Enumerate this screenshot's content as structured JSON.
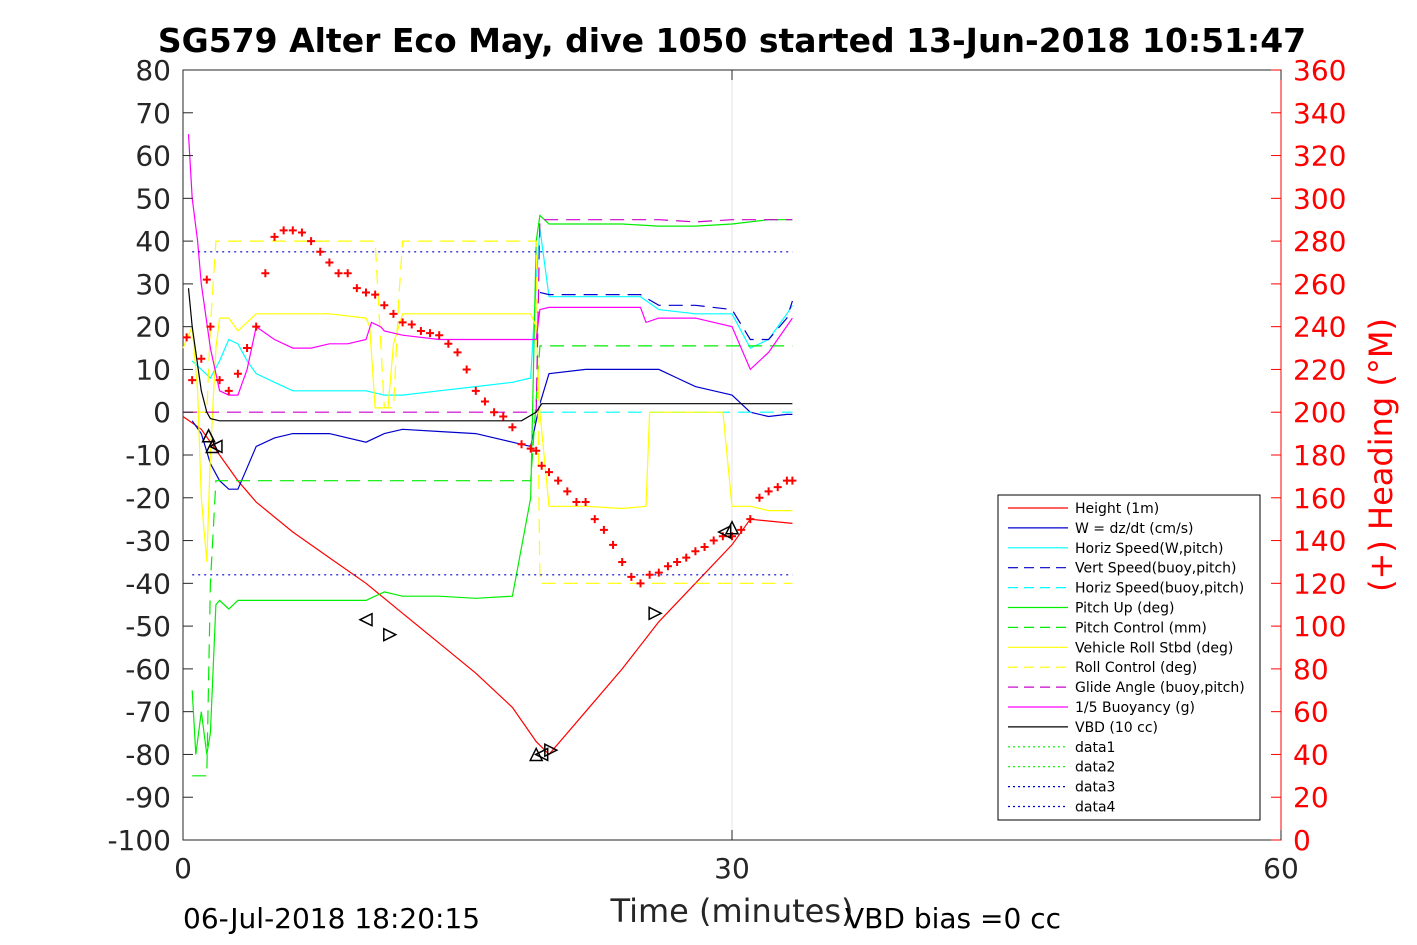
{
  "colors": {
    "axis": "#262626",
    "grid": "#e6e6e6",
    "right_axis": "#ff0000"
  },
  "chart_data": {
    "type": "line",
    "title": "SG579 Alter Eco May, dive 1050 started 13-Jun-2018 10:51:47",
    "xlabel": "Time (minutes)",
    "ylabel": "",
    "y2label": "(+) Heading (°M)",
    "xlim": [
      0,
      60
    ],
    "ylim": [
      -100,
      80
    ],
    "y2lim": [
      0,
      360
    ],
    "xticks": [
      0,
      30,
      60
    ],
    "yticks": [
      -100,
      -90,
      -80,
      -70,
      -60,
      -50,
      -40,
      -30,
      -20,
      -10,
      0,
      10,
      20,
      30,
      40,
      50,
      60,
      70,
      80
    ],
    "y2ticks": [
      0,
      20,
      40,
      60,
      80,
      100,
      120,
      140,
      160,
      180,
      200,
      220,
      240,
      260,
      280,
      300,
      320,
      340,
      360
    ],
    "grid": "x only at 30",
    "legend_position": "lower-right",
    "footer_left": "06-Jul-2018 18:20:15",
    "footer_right": "VBD bias =0 cc",
    "series": [
      {
        "name": "Height (1m)",
        "color": "#ff0000",
        "style": "solid",
        "x": [
          0,
          1,
          2,
          3,
          4,
          6,
          8,
          10,
          12,
          14,
          16,
          18,
          19.3,
          20,
          22,
          24,
          26,
          28,
          30,
          31,
          33.3
        ],
        "y": [
          -1,
          -4,
          -10,
          -16,
          -21,
          -28,
          -34,
          -40,
          -47,
          -54,
          -61,
          -69,
          -77,
          -80,
          -70,
          -60,
          -49,
          -40,
          -31,
          -25,
          -26
        ]
      },
      {
        "name": "W = dz/dt (cm/s)",
        "color": "#0000cc",
        "style": "solid",
        "x": [
          0.5,
          1,
          1.5,
          2,
          2.5,
          3,
          3.5,
          4,
          5,
          6,
          8,
          10,
          11,
          12,
          14,
          16,
          18,
          19,
          19.5,
          20,
          22,
          24,
          26,
          27,
          28,
          29,
          30,
          31,
          32,
          33,
          33.3
        ],
        "y": [
          -2,
          -5,
          -12,
          -16,
          -18,
          -18,
          -13,
          -8,
          -6,
          -5,
          -5,
          -7,
          -5,
          -4,
          -4.5,
          -5,
          -7,
          -8,
          2,
          9,
          10,
          10,
          10,
          8,
          6,
          5,
          4,
          0,
          -1,
          -0.5,
          -0.5
        ]
      },
      {
        "name": "Horiz Speed(W,pitch)",
        "color": "#00ffff",
        "style": "solid",
        "x": [
          0.5,
          1,
          1.5,
          2,
          2.5,
          3,
          3.5,
          4,
          5,
          6,
          8,
          10,
          11,
          12,
          14,
          16,
          18,
          19,
          19.3,
          19.5,
          20,
          22,
          24,
          25,
          26,
          28,
          30,
          31,
          32,
          33,
          33.3
        ],
        "y": [
          12,
          10,
          8,
          12,
          17,
          16,
          12,
          9,
          7,
          5,
          5,
          5,
          4,
          4,
          5,
          6,
          7,
          8,
          30,
          43,
          27,
          27,
          27,
          27,
          24,
          23,
          23,
          15,
          17,
          23,
          25
        ]
      },
      {
        "name": "Vert Speed(buoy,pitch)",
        "color": "#0000cc",
        "style": "dashed",
        "x": [
          19.5,
          20,
          22,
          24,
          25,
          26,
          28,
          30,
          31,
          32,
          33,
          33.3
        ],
        "y": [
          28,
          27.5,
          27.5,
          27.5,
          27.5,
          25,
          25,
          24,
          17,
          17,
          22,
          26
        ]
      },
      {
        "name": "Horiz Speed(buoy,pitch)",
        "color": "#00ffff",
        "style": "dashed",
        "x": [
          19.5,
          20,
          22,
          24,
          26,
          28,
          30,
          31,
          33.3
        ],
        "y": [
          0,
          0,
          0,
          0,
          0,
          0,
          0,
          0,
          0
        ]
      },
      {
        "name": "Pitch Up (deg)",
        "color": "#00ee00",
        "style": "solid",
        "x": [
          0.5,
          0.7,
          1,
          1.3,
          1.5,
          1.8,
          2,
          2.5,
          3,
          4,
          6,
          8,
          10,
          10.5,
          11,
          12,
          14,
          16,
          18,
          19,
          19.3,
          19.5,
          20,
          22,
          24,
          26,
          28,
          30,
          32,
          33.3
        ],
        "y": [
          -65,
          -80,
          -70,
          -80,
          -75,
          -45,
          -44,
          -46,
          -44,
          -44,
          -44,
          -44,
          -44,
          -43,
          -42,
          -43,
          -43,
          -43.5,
          -43,
          -20,
          40,
          46,
          44,
          44,
          44,
          43.5,
          43.5,
          44,
          45,
          45
        ]
      },
      {
        "name": "Pitch Control (mm)",
        "color": "#00ee00",
        "style": "dashed",
        "x": [
          0.5,
          1.3,
          1.5,
          1.8,
          2,
          6,
          10,
          14,
          18.5,
          19,
          19.5,
          20,
          24,
          28,
          33.3
        ],
        "y": [
          -85,
          -85,
          -40,
          -16,
          -16,
          -16,
          -16,
          -16,
          -16,
          -16,
          15.5,
          15.5,
          15.5,
          15.5,
          15.5
        ]
      },
      {
        "name": "Vehicle Roll Stbd (deg)",
        "color": "#ffff00",
        "style": "solid",
        "x": [
          0,
          0.5,
          0.8,
          1,
          1.3,
          1.5,
          1.8,
          2,
          2.5,
          3,
          4,
          6,
          8,
          10,
          10.2,
          10.5,
          11,
          11.2,
          11.5,
          12,
          14,
          16,
          18,
          19,
          19.3,
          19.5,
          20,
          22,
          24,
          25.3,
          25.5,
          27,
          29,
          29.5,
          30,
          31,
          32,
          33.3
        ],
        "y": [
          15,
          20,
          5,
          -20,
          -35,
          -10,
          15,
          22,
          22,
          19,
          23,
          23,
          23,
          22,
          20,
          1,
          1,
          1,
          16,
          23,
          23,
          23,
          23,
          23,
          20,
          0,
          -22,
          -22,
          -22.5,
          -22,
          0,
          0,
          0,
          0,
          -22,
          -22,
          -23,
          -23
        ]
      },
      {
        "name": "Roll Control (deg)",
        "color": "#ffff00",
        "style": "dashed",
        "x": [
          0.5,
          1,
          1.3,
          1.5,
          1.8,
          2,
          4,
          8,
          10,
          10.5,
          11,
          11.5,
          11.8,
          12,
          14,
          18,
          19,
          19.3,
          19.5,
          20,
          24,
          25.3,
          25.5,
          29,
          29.3,
          30,
          33.3
        ],
        "y": [
          0,
          0,
          0,
          20,
          40,
          40,
          40,
          40,
          40,
          40,
          1,
          1,
          27,
          40,
          40,
          40,
          40,
          40,
          -40,
          -40,
          -40,
          -40,
          -40,
          -40,
          -40,
          -40,
          -40
        ]
      },
      {
        "name": "Glide Angle (buoy,pitch)",
        "color": "#cc00cc",
        "style": "dashed",
        "x": [
          0,
          2,
          4,
          8,
          12,
          16,
          18.5,
          19.3,
          19.5,
          20,
          22,
          24,
          26,
          28,
          30,
          32,
          33.3
        ],
        "y": [
          0,
          0,
          0,
          0,
          0,
          0,
          0,
          0,
          45,
          45,
          45,
          45,
          45,
          44.5,
          45,
          45,
          45
        ]
      },
      {
        "name": "1/5 Buoyancy (g)",
        "color": "#ff00ff",
        "style": "solid",
        "x": [
          0.3,
          0.5,
          0.8,
          1,
          1.5,
          2,
          2.5,
          3,
          3.5,
          4,
          5,
          6,
          7,
          8,
          9,
          10,
          10.3,
          10.8,
          11,
          12,
          14,
          16,
          18,
          19,
          19.3,
          19.5,
          20,
          22,
          24,
          25,
          25.3,
          26,
          28,
          30,
          31,
          32,
          33.3
        ],
        "y": [
          65,
          50,
          40,
          30,
          15,
          5,
          4,
          4,
          10,
          20,
          17,
          15,
          15,
          16,
          16,
          17,
          21,
          20,
          19,
          18,
          17,
          17,
          17,
          17,
          17,
          24,
          24.5,
          24.5,
          24.5,
          24.5,
          21,
          22,
          22,
          20,
          10,
          14,
          22
        ]
      },
      {
        "name": "VBD (10 cc)",
        "color": "#000000",
        "style": "solid",
        "x": [
          0.3,
          0.5,
          1,
          1.3,
          1.5,
          2,
          4,
          8,
          12,
          16,
          18.5,
          19.3,
          19.6,
          20,
          24,
          28,
          33.3
        ],
        "y": [
          29,
          20,
          5,
          0,
          -1.5,
          -2,
          -2,
          -2,
          -2,
          -2,
          -2,
          0,
          2,
          2,
          2,
          2,
          2
        ]
      },
      {
        "name": "data1",
        "color": "#00ee00",
        "style": "dotted",
        "x": [],
        "y": []
      },
      {
        "name": "data2",
        "color": "#00ee00",
        "style": "dotted",
        "x": [],
        "y": []
      },
      {
        "name": "data3",
        "color": "#0000cc",
        "style": "dotted",
        "x": [
          0.5,
          33.3
        ],
        "y": [
          -38,
          -38
        ]
      },
      {
        "name": "data4",
        "color": "#0000cc",
        "style": "dotted",
        "x": [
          0.5,
          33.3
        ],
        "y": [
          37.5,
          37.5
        ]
      }
    ],
    "heading_series": {
      "color": "#ff0000",
      "marker": "+",
      "axis": "right",
      "x": [
        0.2,
        0.5,
        1,
        1.3,
        1.5,
        2,
        2.5,
        3,
        3.5,
        4,
        4.5,
        5,
        5.5,
        6,
        6.5,
        7,
        7.5,
        8,
        8.5,
        9,
        9.5,
        10,
        10.5,
        11,
        11.5,
        12,
        12.5,
        13,
        13.5,
        14,
        14.5,
        15,
        15.5,
        16,
        16.5,
        17,
        17.5,
        18,
        18.5,
        19,
        19.3,
        19.6,
        20,
        20.5,
        21,
        21.5,
        22,
        22.5,
        23,
        23.5,
        24,
        24.5,
        25,
        25.5,
        26,
        26.5,
        27,
        27.5,
        28,
        28.5,
        29,
        29.5,
        30,
        30.5,
        31,
        31.5,
        32,
        32.5,
        33,
        33.3
      ],
      "y": [
        235,
        215,
        225,
        262,
        240,
        215,
        210,
        218,
        230,
        240,
        265,
        282,
        285,
        285,
        284,
        280,
        275,
        270,
        265,
        265,
        258,
        256,
        255,
        250,
        246,
        242,
        241,
        238,
        237,
        236,
        232,
        228,
        220,
        210,
        205,
        200,
        198,
        193,
        185,
        183,
        182,
        175,
        172,
        168,
        163,
        158,
        158,
        150,
        145,
        138,
        130,
        123,
        120,
        124,
        125,
        128,
        130,
        132,
        135,
        137,
        140,
        142,
        142,
        145,
        150,
        160,
        163,
        165,
        168,
        168
      ]
    },
    "markers": {
      "color": "#000000",
      "triangles": [
        {
          "x": 1.4,
          "y": -5.5,
          "dir": "up"
        },
        {
          "x": 1.6,
          "y": -8,
          "dir": "up"
        },
        {
          "x": 1.8,
          "y": -8,
          "dir": "left"
        },
        {
          "x": 10,
          "y": -48.5,
          "dir": "left"
        },
        {
          "x": 11.3,
          "y": -52,
          "dir": "right"
        },
        {
          "x": 19.3,
          "y": -80,
          "dir": "up"
        },
        {
          "x": 19.6,
          "y": -80,
          "dir": "left"
        },
        {
          "x": 20.1,
          "y": -79,
          "dir": "right"
        },
        {
          "x": 25.8,
          "y": -47,
          "dir": "right"
        },
        {
          "x": 29.6,
          "y": -28,
          "dir": "left"
        },
        {
          "x": 30,
          "y": -27,
          "dir": "up"
        }
      ]
    }
  }
}
